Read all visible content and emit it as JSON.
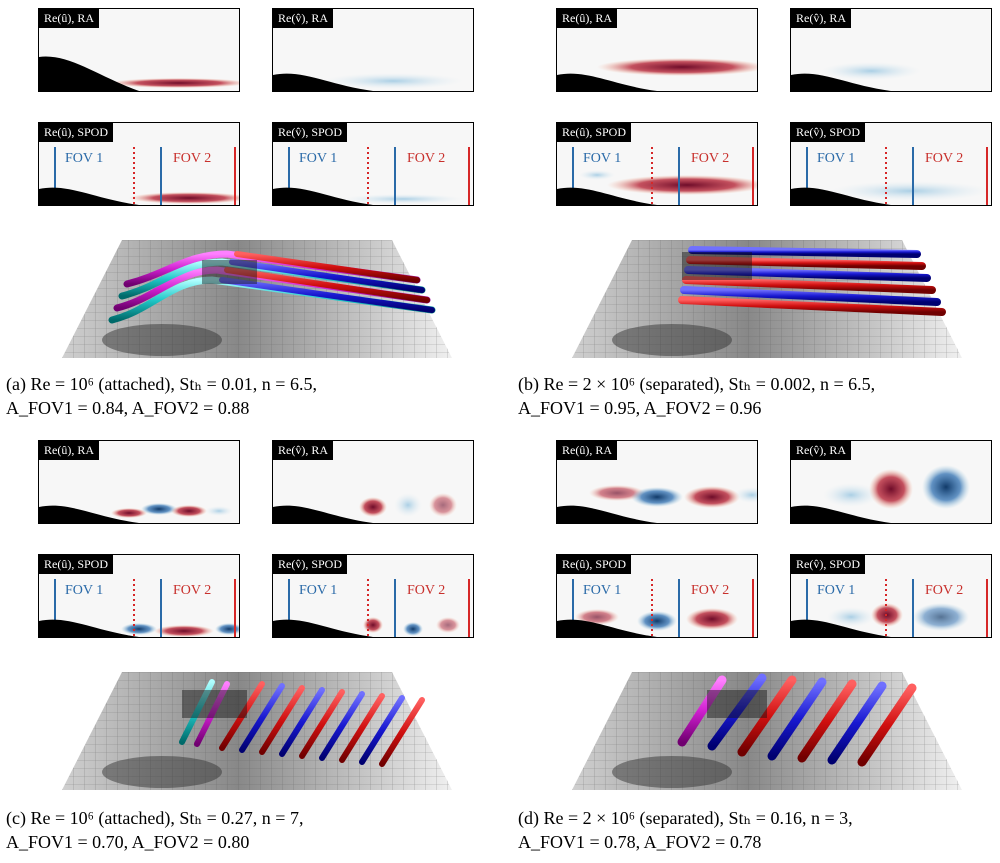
{
  "tags": {
    "u_ra": "Re(û), RA",
    "v_ra": "Re(v̂), RA",
    "u_spod": "Re(û), SPOD",
    "v_spod": "Re(v̂), SPOD"
  },
  "fov_labels": {
    "fov1": "FOV 1",
    "fov2": "FOV 2"
  },
  "colors": {
    "red": "#b2182b",
    "blue": "#2166ac",
    "magenta": "#d61fd6",
    "cyan": "#2ad6d6"
  },
  "panels": [
    {
      "id": "a",
      "line1": "(a) Re = 10⁶ (attached), Stₕ = 0.01, n = 6.5,",
      "line2": "A_FOV1 = 0.84, A_FOV2 = 0.88"
    },
    {
      "id": "b",
      "line1": "(b) Re = 2 × 10⁶ (separated), Stₕ = 0.002, n = 6.5,",
      "line2": "A_FOV1 = 0.95, A_FOV2 = 0.96"
    },
    {
      "id": "c",
      "line1": "(c) Re = 10⁶ (attached), Stₕ = 0.27, n = 7,",
      "line2": "A_FOV1 = 0.70, A_FOV2 = 0.80"
    },
    {
      "id": "d",
      "line1": "(d) Re = 2 × 10⁶ (separated), Stₕ = 0.16, n = 3,",
      "line2": "A_FOV1 = 0.78, A_FOV2 = 0.78"
    }
  ]
}
